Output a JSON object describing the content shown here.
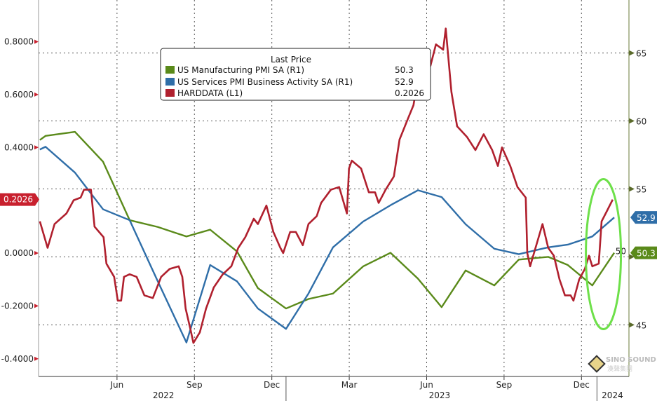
{
  "chart_data": {
    "type": "line",
    "title": "",
    "legend": {
      "title": "Last Price",
      "placement": "top-center",
      "entries": [
        {
          "label": "US Manufacturing PMI SA  (R1)",
          "value": "50.3",
          "color": "#5a8a1a"
        },
        {
          "label": "US Services PMI Business Activity SA  (R1)",
          "value": "52.9",
          "color": "#2f6ea8"
        },
        {
          "label": "HARDDATA  (L1)",
          "value": "0.2026",
          "color": "#b0202e"
        }
      ]
    },
    "x_axis": {
      "unit": "months since Jun 2022",
      "range": [
        -3.04,
        19.84
      ],
      "ticks": [
        {
          "x": 0,
          "label": "Jun"
        },
        {
          "x": 3,
          "label": "Sep"
        },
        {
          "x": 6,
          "label": "Dec"
        },
        {
          "x": 9,
          "label": "Mar"
        },
        {
          "x": 12,
          "label": "Jun"
        },
        {
          "x": 15,
          "label": "Sep"
        },
        {
          "x": 18,
          "label": "Dec"
        }
      ],
      "years": [
        {
          "x": 1.8,
          "label": "2022"
        },
        {
          "x": 12.5,
          "label": "2023"
        },
        {
          "x": 19.2,
          "label": "2024"
        }
      ],
      "year_breaks": [
        6.55,
        18.6
      ]
    },
    "y_left": {
      "range": [
        -0.467,
        0.958
      ],
      "ticks": [
        {
          "v": 0.8,
          "label": "0.8000"
        },
        {
          "v": 0.6,
          "label": "0.6000"
        },
        {
          "v": 0.4,
          "label": "0.4000"
        },
        {
          "v": 0.0,
          "label": "0.0000"
        },
        {
          "v": -0.2,
          "label": "-0.2000"
        },
        {
          "v": -0.4,
          "label": "-0.4000"
        }
      ]
    },
    "y_right": {
      "range": [
        41.2,
        68.9
      ],
      "ticks": [
        {
          "v": 45,
          "label": "45"
        },
        {
          "v": 50,
          "label": "50"
        },
        {
          "v": 55,
          "label": "55"
        },
        {
          "v": 60,
          "label": "60"
        },
        {
          "v": 65,
          "label": "65"
        }
      ]
    },
    "grid": true,
    "pmi_x": [
      -2.99,
      -2.77,
      -1.63,
      -0.54,
      0.49,
      1.58,
      2.69,
      3.61,
      4.65,
      5.46,
      6.55,
      7.42,
      8.37,
      9.54,
      10.6,
      11.66,
      12.58,
      13.51,
      14.62,
      15.57,
      16.71,
      17.47,
      18.42,
      19.27
    ],
    "series": [
      {
        "name": "US Manufacturing PMI SA",
        "axis": "right",
        "color": "#5a8a1a",
        "values": [
          58.6,
          58.9,
          59.2,
          57.0,
          52.7,
          52.2,
          51.5,
          52.0,
          50.4,
          47.7,
          46.2,
          46.9,
          47.3,
          49.3,
          50.3,
          48.4,
          46.3,
          49.0,
          47.9,
          49.8,
          50.0,
          49.4,
          47.9,
          50.3
        ]
      },
      {
        "name": "US Services PMI Business Activity SA",
        "axis": "right",
        "color": "#2f6ea8",
        "values": [
          57.9,
          58.1,
          56.2,
          53.5,
          52.7,
          48.2,
          43.7,
          49.4,
          48.2,
          46.2,
          44.7,
          47.3,
          50.7,
          52.6,
          53.8,
          54.9,
          54.4,
          52.4,
          50.6,
          50.2,
          50.7,
          50.9,
          51.5,
          52.9
        ]
      },
      {
        "name": "HARDDATA",
        "axis": "left",
        "color": "#b0202e",
        "points": [
          [
            -2.99,
            0.12
          ],
          [
            -2.69,
            0.02
          ],
          [
            -2.42,
            0.11
          ],
          [
            -1.96,
            0.15
          ],
          [
            -1.68,
            0.2
          ],
          [
            -1.41,
            0.21
          ],
          [
            -1.28,
            0.24
          ],
          [
            -1.01,
            0.24
          ],
          [
            -0.87,
            0.1
          ],
          [
            -0.52,
            0.06
          ],
          [
            -0.41,
            -0.04
          ],
          [
            -0.11,
            -0.09
          ],
          [
            0.03,
            -0.18
          ],
          [
            0.16,
            -0.18
          ],
          [
            0.27,
            -0.09
          ],
          [
            0.49,
            -0.08
          ],
          [
            0.76,
            -0.09
          ],
          [
            1.06,
            -0.16
          ],
          [
            1.39,
            -0.17
          ],
          [
            1.71,
            -0.09
          ],
          [
            2.04,
            -0.06
          ],
          [
            2.39,
            -0.05
          ],
          [
            2.53,
            -0.09
          ],
          [
            2.66,
            -0.21
          ],
          [
            2.85,
            -0.29
          ],
          [
            2.96,
            -0.34
          ],
          [
            3.21,
            -0.3
          ],
          [
            3.45,
            -0.21
          ],
          [
            3.75,
            -0.13
          ],
          [
            4.1,
            -0.08
          ],
          [
            4.43,
            -0.05
          ],
          [
            4.7,
            0.02
          ],
          [
            4.97,
            0.06
          ],
          [
            5.3,
            0.13
          ],
          [
            5.46,
            0.11
          ],
          [
            5.79,
            0.18
          ],
          [
            6.06,
            0.08
          ],
          [
            6.33,
            0.02
          ],
          [
            6.44,
            0.0
          ],
          [
            6.71,
            0.08
          ],
          [
            6.93,
            0.08
          ],
          [
            7.2,
            0.03
          ],
          [
            7.42,
            0.11
          ],
          [
            7.74,
            0.14
          ],
          [
            7.91,
            0.19
          ],
          [
            8.29,
            0.24
          ],
          [
            8.61,
            0.25
          ],
          [
            8.91,
            0.15
          ],
          [
            8.99,
            0.32
          ],
          [
            9.1,
            0.35
          ],
          [
            9.46,
            0.32
          ],
          [
            9.76,
            0.23
          ],
          [
            10.0,
            0.23
          ],
          [
            10.14,
            0.19
          ],
          [
            10.41,
            0.24
          ],
          [
            10.73,
            0.29
          ],
          [
            10.95,
            0.43
          ],
          [
            11.28,
            0.51
          ],
          [
            11.49,
            0.56
          ],
          [
            11.71,
            0.69
          ],
          [
            11.93,
            0.67
          ],
          [
            12.15,
            0.71
          ],
          [
            12.36,
            0.79
          ],
          [
            12.64,
            0.77
          ],
          [
            12.74,
            0.85
          ],
          [
            12.96,
            0.61
          ],
          [
            13.18,
            0.48
          ],
          [
            13.56,
            0.44
          ],
          [
            13.89,
            0.39
          ],
          [
            14.21,
            0.45
          ],
          [
            14.54,
            0.39
          ],
          [
            14.76,
            0.33
          ],
          [
            14.92,
            0.4
          ],
          [
            15.24,
            0.33
          ],
          [
            15.52,
            0.25
          ],
          [
            15.84,
            0.21
          ],
          [
            15.9,
            0.0
          ],
          [
            16.01,
            -0.05
          ],
          [
            16.28,
            0.04
          ],
          [
            16.49,
            0.11
          ],
          [
            16.71,
            0.02
          ],
          [
            16.93,
            -0.01
          ],
          [
            17.15,
            -0.1
          ],
          [
            17.36,
            -0.16
          ],
          [
            17.58,
            -0.16
          ],
          [
            17.69,
            -0.18
          ],
          [
            17.91,
            -0.1
          ],
          [
            18.13,
            -0.06
          ],
          [
            18.29,
            -0.01
          ],
          [
            18.42,
            -0.05
          ],
          [
            18.67,
            -0.04
          ],
          [
            18.78,
            0.12
          ],
          [
            18.99,
            0.16
          ],
          [
            19.21,
            0.2026
          ]
        ]
      }
    ],
    "last_value_tags": [
      {
        "series": "HARDDATA",
        "label": "0.2026",
        "axis": "left",
        "v": 0.2026,
        "color": "#c8202e"
      },
      {
        "series": "US Services PMI Business Activity SA",
        "label": "52.9",
        "axis": "right",
        "v": 52.9,
        "color": "#2f6ea8"
      },
      {
        "series": "US Manufacturing PMI SA",
        "label": "50.3",
        "axis": "right",
        "v": 50.3,
        "color": "#5a8a1a"
      }
    ],
    "annotation": {
      "shape": "ellipse",
      "color": "#6ee04a",
      "x_center": 18.85,
      "y_center_right": 50.2
    }
  },
  "watermark": {
    "text": "SINO SOUND",
    "sub": "漢聲集團"
  }
}
